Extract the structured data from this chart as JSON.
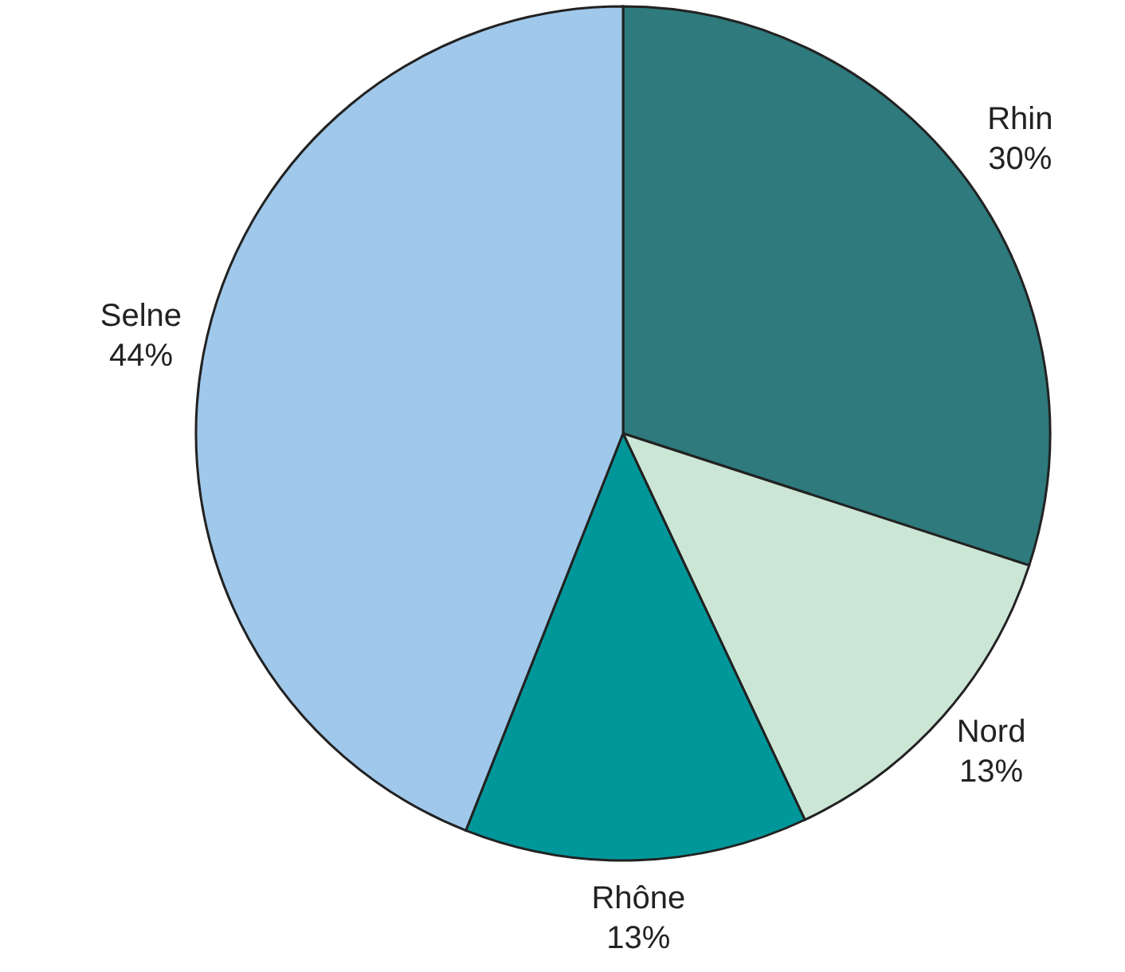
{
  "chart_data": {
    "type": "pie",
    "categories": [
      "Rhin",
      "Nord",
      "Rhône",
      "Selne"
    ],
    "values": [
      30,
      13,
      13,
      44
    ],
    "value_labels": [
      "30%",
      "13%",
      "13%",
      "44%"
    ],
    "colors": [
      "#2e7a7c",
      "#cce6d6",
      "#00979a",
      "#a0c8ea"
    ]
  }
}
